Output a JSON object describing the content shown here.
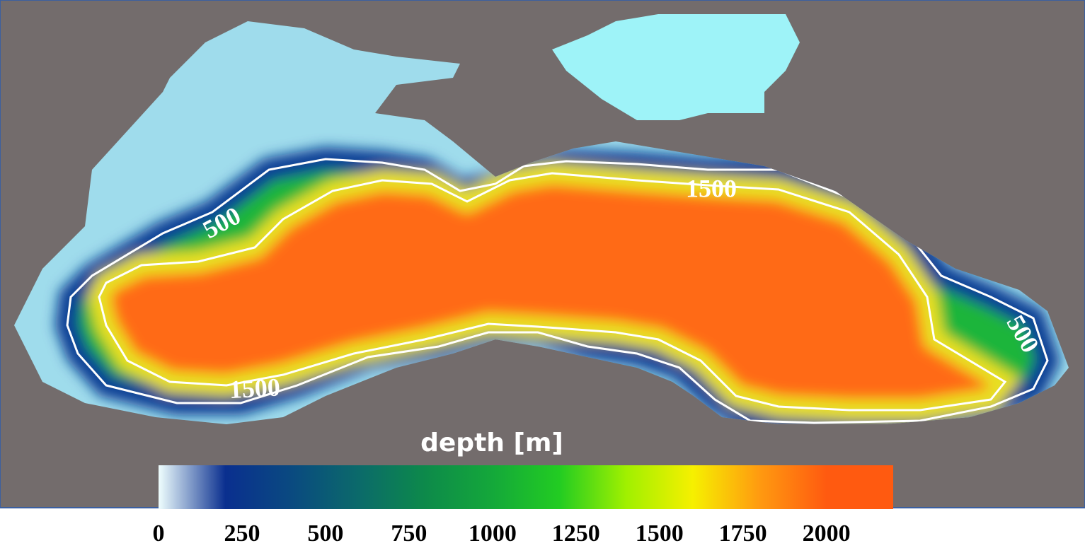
{
  "map": {
    "contour_labels": [
      500,
      1500,
      1500,
      500
    ]
  },
  "colorbar": {
    "title": "depth [m]",
    "range": [
      0,
      2200
    ],
    "ticks": [
      0,
      250,
      500,
      750,
      1000,
      1250,
      1500,
      1750,
      2000
    ],
    "colors": [
      "#effefe",
      "#0a2f8f",
      "#0a4a80",
      "#0b6a6a",
      "#0d8a4a",
      "#14a83a",
      "#22cc22",
      "#a0f000",
      "#f6f000",
      "#ff9a10",
      "#ff5a10",
      "#ff5a10"
    ]
  }
}
